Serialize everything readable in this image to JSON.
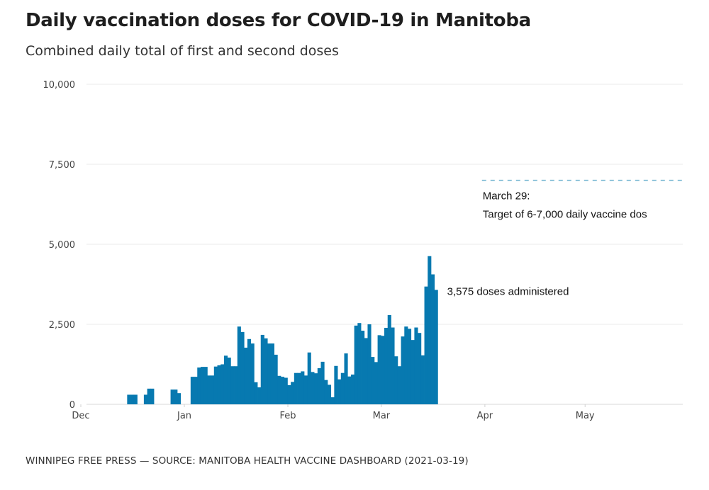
{
  "title": "Daily vaccination doses for COVID-19 in Manitoba",
  "subtitle": "Combined daily total of first and second doses",
  "footer": "WINNIPEG FREE PRESS — SOURCE: MANITOBA HEALTH VACCINE DASHBOARD (2021-03-19)",
  "chart_data": {
    "type": "bar",
    "title": "Daily vaccination doses for COVID-19 in Manitoba",
    "subtitle": "Combined daily total of first and second doses",
    "xlabel": "",
    "ylabel": "",
    "x_range": [
      "2020-12-01",
      "2021-05-30"
    ],
    "ylim": [
      0,
      10000
    ],
    "grid": true,
    "bar_color": "#0779b0",
    "y_ticks": [
      {
        "value": 0,
        "label": "0"
      },
      {
        "value": 2500,
        "label": "2,500"
      },
      {
        "value": 5000,
        "label": "5,000"
      },
      {
        "value": 7500,
        "label": "7,500"
      },
      {
        "value": 10000,
        "label": "10,000"
      }
    ],
    "x_ticks": [
      {
        "date": "2020-12-01",
        "label": "Dec"
      },
      {
        "date": "2021-01-01",
        "label": "Jan"
      },
      {
        "date": "2021-02-01",
        "label": "Feb"
      },
      {
        "date": "2021-03-01",
        "label": "Mar"
      },
      {
        "date": "2021-04-01",
        "label": "Apr"
      },
      {
        "date": "2021-05-01",
        "label": "May"
      }
    ],
    "series": [
      {
        "name": "Daily doses",
        "points": [
          {
            "date": "2020-12-15",
            "value": 300
          },
          {
            "date": "2020-12-16",
            "value": 300
          },
          {
            "date": "2020-12-17",
            "value": 300
          },
          {
            "date": "2020-12-20",
            "value": 300
          },
          {
            "date": "2020-12-21",
            "value": 490
          },
          {
            "date": "2020-12-22",
            "value": 490
          },
          {
            "date": "2020-12-28",
            "value": 460
          },
          {
            "date": "2020-12-29",
            "value": 460
          },
          {
            "date": "2020-12-30",
            "value": 350
          }
        ]
      }
    ],
    "daily_from_2021_01_03": [
      860,
      860,
      1150,
      1170,
      1170,
      900,
      900,
      1180,
      1220,
      1250,
      1520,
      1460,
      1190,
      1190,
      2430,
      2260,
      1770,
      2040,
      1900,
      690,
      530,
      2170,
      2060,
      1900,
      1900,
      1550,
      890,
      860,
      830,
      600,
      700,
      980,
      980,
      1030,
      900,
      1620,
      1010,
      970,
      1130,
      1330,
      760,
      610,
      220,
      1200,
      780,
      980,
      1590,
      870,
      930,
      2460,
      2540,
      2300,
      2070,
      2500,
      1480,
      1320,
      2160,
      2140,
      2390,
      2790,
      2400,
      1500,
      1190,
      2120,
      2430,
      2360,
      2010,
      2400,
      2230,
      1530,
      3680,
      4630,
      4060,
      3575
    ],
    "annotations": [
      {
        "type": "label",
        "date": "2021-03-19",
        "value": 3575,
        "text": "3,575 doses administered"
      },
      {
        "type": "target-line",
        "start_date": "2021-03-29",
        "value": 7000,
        "color": "#6fb3cf",
        "line1": "March 29:",
        "line2": "Target of 6-7,000 daily vaccine dos"
      }
    ]
  }
}
